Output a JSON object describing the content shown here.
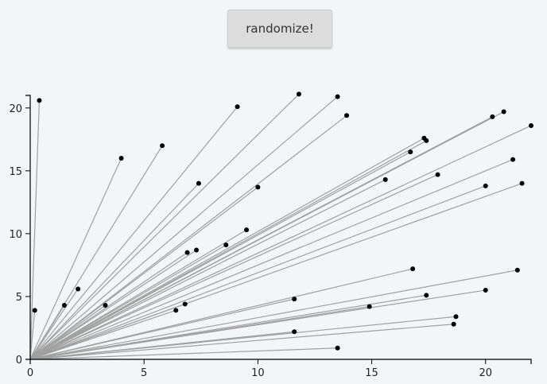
{
  "button": {
    "label": "randomize!"
  },
  "chart_data": {
    "type": "scatter",
    "title": "",
    "xlabel": "",
    "ylabel": "",
    "xlim": [
      0,
      22
    ],
    "ylim": [
      0,
      21
    ],
    "xticks": [
      0,
      5,
      10,
      15,
      20
    ],
    "yticks": [
      0,
      5,
      10,
      15,
      20
    ],
    "xtick_labels": [
      "0",
      "5",
      "10",
      "15",
      "20"
    ],
    "ytick_labels": [
      "0",
      "5",
      "10",
      "15",
      "20"
    ],
    "origin": [
      0,
      0
    ],
    "line_color": "#a0a0a0",
    "point_color": "#000000",
    "points": [
      [
        0.2,
        3.9
      ],
      [
        0.4,
        20.6
      ],
      [
        1.5,
        4.3
      ],
      [
        2.1,
        5.6
      ],
      [
        3.3,
        4.3
      ],
      [
        4.0,
        16.0
      ],
      [
        5.8,
        17.0
      ],
      [
        6.4,
        3.9
      ],
      [
        6.8,
        4.4
      ],
      [
        6.9,
        8.5
      ],
      [
        7.3,
        8.7
      ],
      [
        7.4,
        14.0
      ],
      [
        8.6,
        9.1
      ],
      [
        9.1,
        20.1
      ],
      [
        9.5,
        10.3
      ],
      [
        10.0,
        13.7
      ],
      [
        11.6,
        4.8
      ],
      [
        11.6,
        2.2
      ],
      [
        11.8,
        21.1
      ],
      [
        13.5,
        20.9
      ],
      [
        13.5,
        0.9
      ],
      [
        13.9,
        19.4
      ],
      [
        14.9,
        4.2
      ],
      [
        15.6,
        14.3
      ],
      [
        16.7,
        16.5
      ],
      [
        16.8,
        7.2
      ],
      [
        17.3,
        17.6
      ],
      [
        17.4,
        5.1
      ],
      [
        17.4,
        17.4
      ],
      [
        17.9,
        14.7
      ],
      [
        18.6,
        2.8
      ],
      [
        18.7,
        3.4
      ],
      [
        20.0,
        5.5
      ],
      [
        20.0,
        13.8
      ],
      [
        20.3,
        19.3
      ],
      [
        20.8,
        19.7
      ],
      [
        21.2,
        15.9
      ],
      [
        21.4,
        7.1
      ],
      [
        21.6,
        14.0
      ],
      [
        22.0,
        18.6
      ]
    ]
  }
}
